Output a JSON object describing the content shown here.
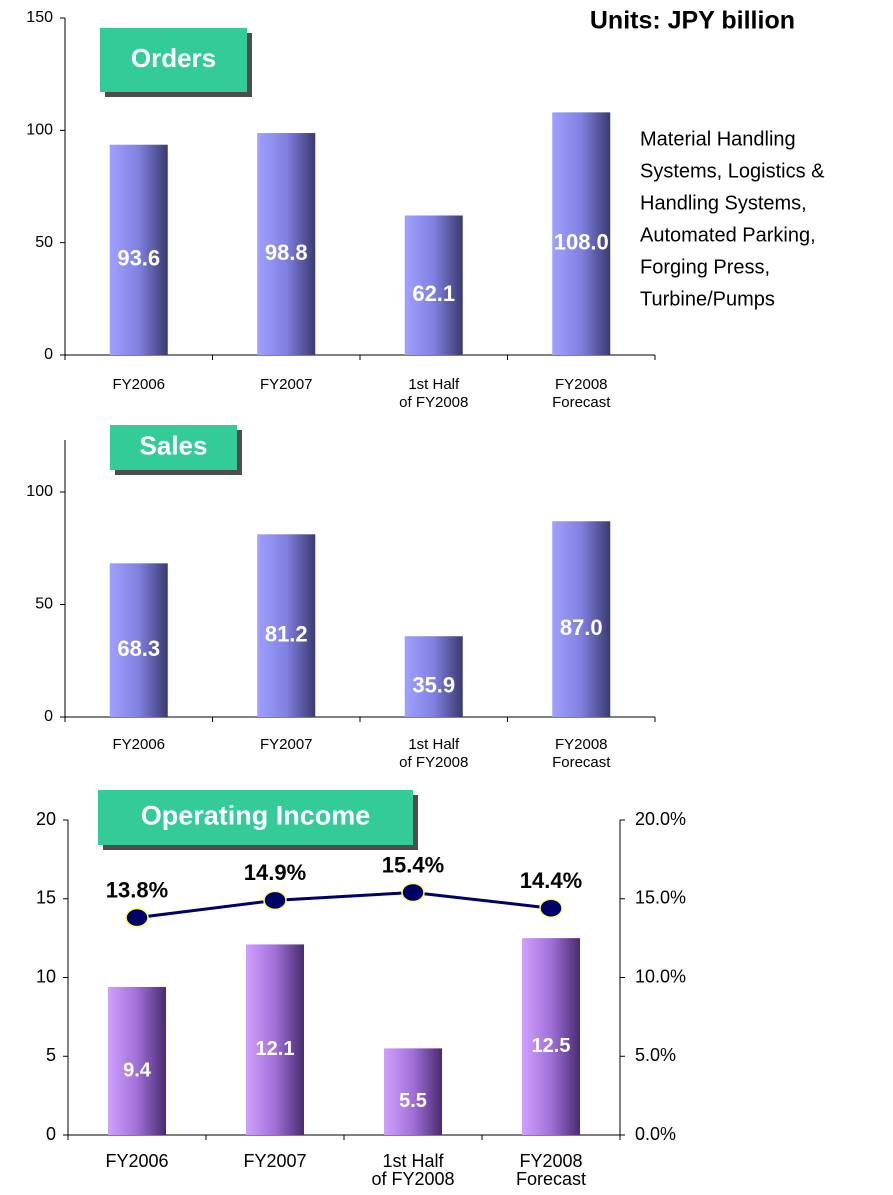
{
  "note": "Units: JPY billion",
  "description": [
    "Material Handling",
    "Systems, Logistics &",
    "Handling Systems,",
    "Automated Parking,",
    "Forging Press,",
    "Turbine/Pumps"
  ],
  "chart_data": [
    {
      "type": "bar",
      "title": "Orders",
      "categories": [
        "FY2006",
        "FY2007",
        "1st Half\nof FY2008",
        "FY2008\nForecast"
      ],
      "values": [
        93.6,
        98.8,
        62.1,
        108.0
      ],
      "value_labels": [
        "93.6",
        "98.8",
        "62.1",
        "108.0"
      ],
      "color": "#9999ff",
      "ylim": [
        0,
        150
      ],
      "yticks": [
        0,
        50,
        100,
        150
      ]
    },
    {
      "type": "bar",
      "title": "Sales",
      "categories": [
        "FY2006",
        "FY2007",
        "1st Half\nof FY2008",
        "FY2008\nForecast"
      ],
      "values": [
        68.3,
        81.2,
        35.9,
        87.0
      ],
      "value_labels": [
        "68.3",
        "81.2",
        "35.9",
        "87.0"
      ],
      "color": "#9999ff",
      "ylim": [
        0,
        120
      ],
      "yticks": [
        0,
        50,
        100
      ]
    },
    {
      "type": "bar_line",
      "title": "Operating Income",
      "categories": [
        "FY2006",
        "FY2007",
        "1st Half\nof FY2008",
        "FY2008\nForecast"
      ],
      "series": [
        {
          "type": "bar",
          "color": "#cc99ff",
          "values": [
            9.4,
            12.1,
            5.5,
            12.5
          ]
        },
        {
          "type": "line",
          "axis": "y2",
          "color": "#000066",
          "values": [
            13.8,
            14.9,
            15.4,
            14.4
          ],
          "value_labels": [
            "13.8%",
            "14.9%",
            "15.4%",
            "14.4%"
          ]
        }
      ],
      "ylim": [
        0,
        20
      ],
      "yticks": [
        0,
        5,
        10,
        15,
        20
      ],
      "y2lim": [
        0,
        20
      ],
      "y2ticks": [
        {
          "value": 0,
          "label": "0.0%"
        },
        {
          "value": 5,
          "label": "5.0%"
        },
        {
          "value": 10,
          "label": "10.0%"
        },
        {
          "value": 15,
          "label": "15.0%"
        },
        {
          "value": 20,
          "label": "20.0%"
        }
      ]
    }
  ]
}
